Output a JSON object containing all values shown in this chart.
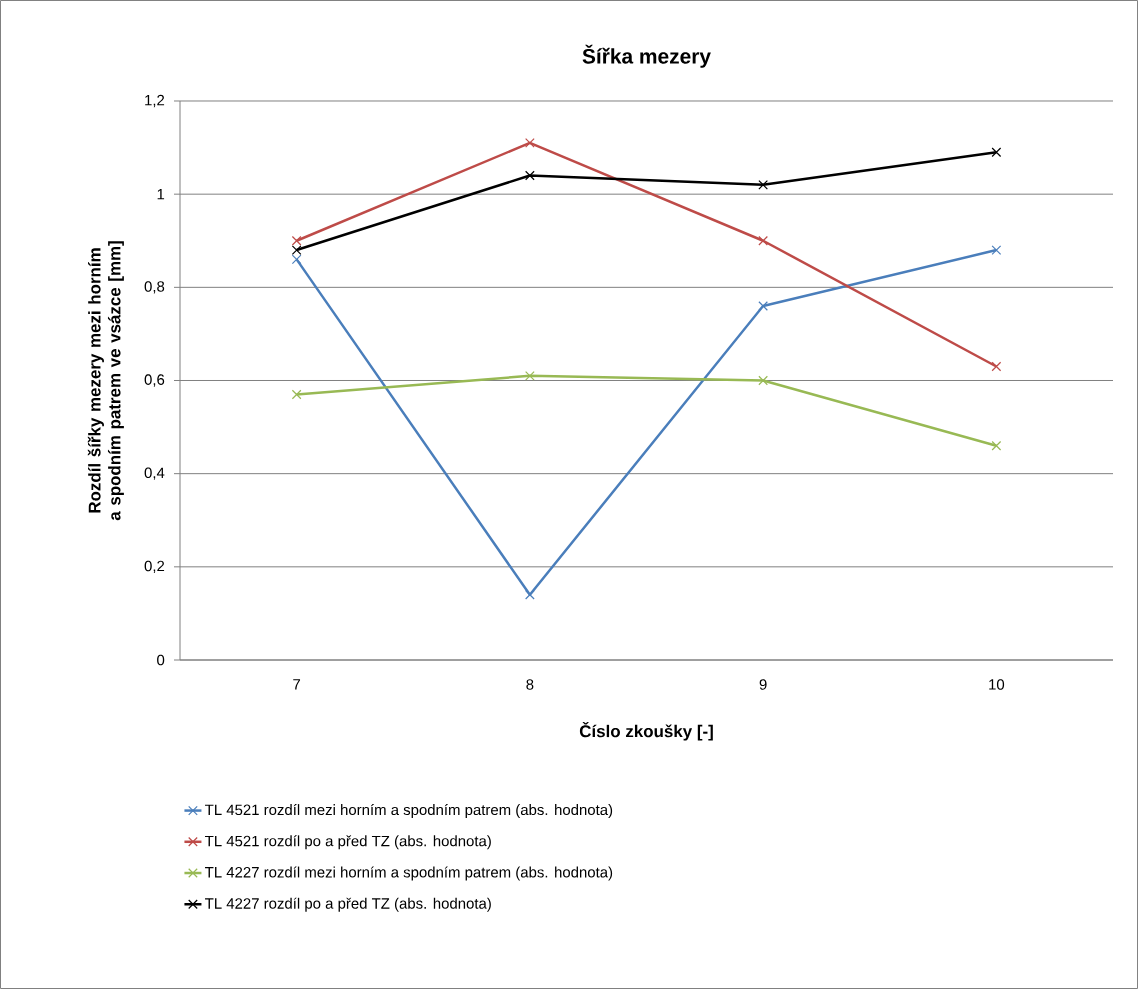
{
  "chart_data": {
    "type": "line",
    "title": "Šířka mezery",
    "xlabel": "Číslo zkoušky [-]",
    "ylabel": "Rozdíl šířky mezery mezi horním a spodním patrem ve vsázce [mm]",
    "categories": [
      "7",
      "8",
      "9",
      "10"
    ],
    "series": [
      {
        "name": "TL 4521 rozdíl mezi horním a spodním patrem (abs. hodnota)",
        "color": "#4a7ebb",
        "values": [
          0.86,
          0.14,
          0.76,
          0.88
        ]
      },
      {
        "name": "TL 4521 rozdíl po a před TZ (abs. hodnota)",
        "color": "#be4b48",
        "values": [
          0.9,
          1.11,
          0.9,
          0.63
        ]
      },
      {
        "name": "TL 4227 rozdíl mezi horním a spodním patrem (abs. hodnota)",
        "color": "#98b954",
        "values": [
          0.57,
          0.61,
          0.6,
          0.46
        ]
      },
      {
        "name": "TL 4227 rozdíl po a před TZ (abs. hodnota)",
        "color": "#000000",
        "values": [
          0.88,
          1.04,
          1.02,
          1.09
        ]
      }
    ],
    "ylim": [
      0,
      1.2
    ],
    "yticks": [
      0,
      {
        "value": 0.2,
        "label": "0,2"
      },
      {
        "value": 0.4,
        "label": "0,4"
      },
      {
        "value": 0.6,
        "label": "0,6"
      },
      {
        "value": 0.8,
        "label": "0,8"
      },
      1,
      {
        "value": 1.2,
        "label": "1,2"
      }
    ],
    "grid": "y",
    "legend": "bottom",
    "marker": "cross",
    "line_style": "solid"
  }
}
